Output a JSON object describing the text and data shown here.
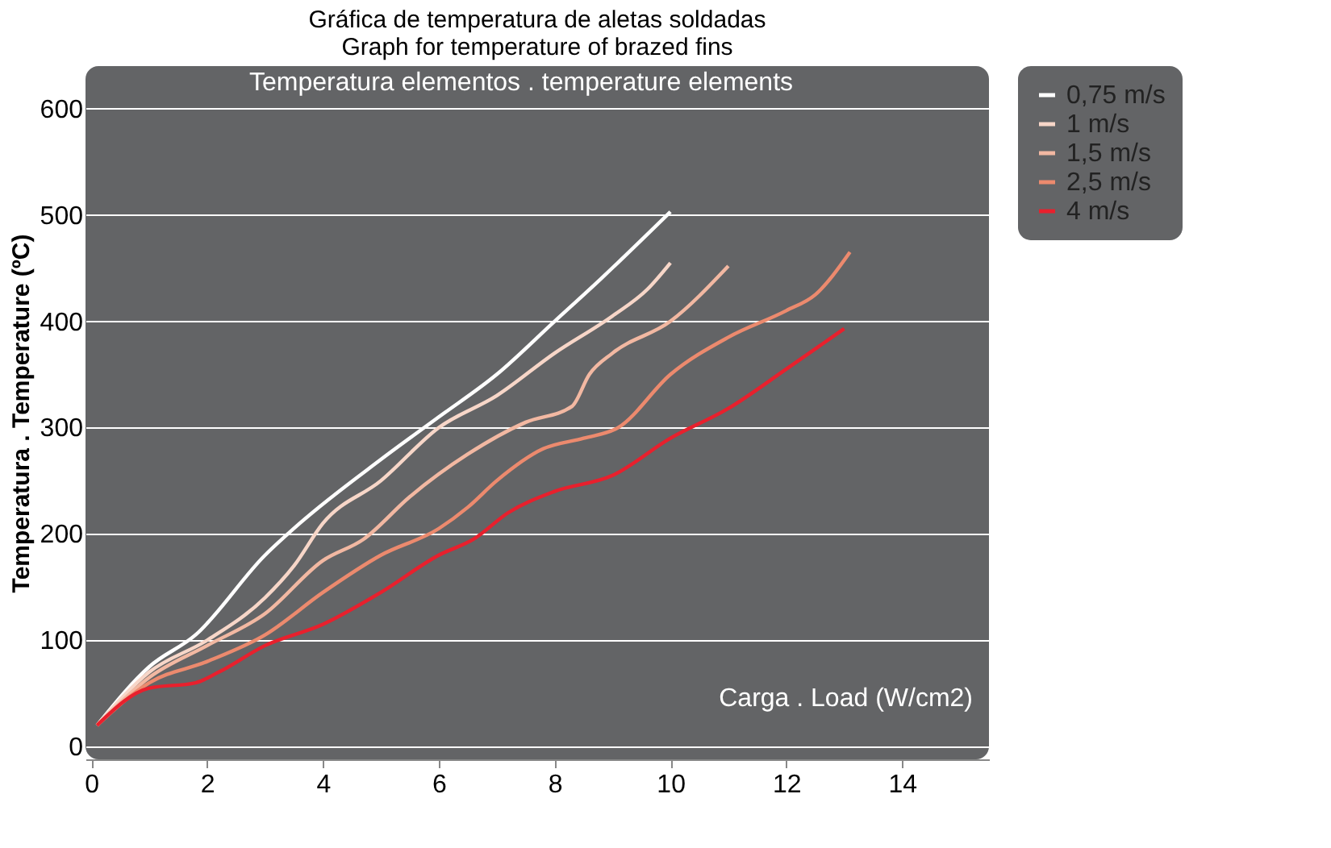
{
  "chart_data": {
    "type": "line",
    "title": [
      "Gráfica de temperatura de aletas soldadas",
      "Graph for temperature of brazed fins"
    ],
    "subtitle": "Temperatura elementos . temperature elements",
    "xlabel": "Carga . Load  (W/cm2)",
    "ylabel": "Temperatura . Temperature (ºC)",
    "xlim": [
      -0.1,
      15.5
    ],
    "xticks": [
      0,
      2,
      4,
      6,
      8,
      10,
      12,
      14
    ],
    "ylim": [
      -12,
      640
    ],
    "yticks": [
      0,
      100,
      200,
      300,
      400,
      500,
      600
    ],
    "grid": "y",
    "legend": "right",
    "line_style": "solid",
    "marker": "none",
    "series": [
      {
        "name": "0,75 m/s",
        "color": "#ffffff",
        "x": [
          0.1,
          1,
          1.8,
          3,
          3.6,
          5,
          6,
          7,
          8,
          8.8,
          10
        ],
        "values": [
          20,
          75,
          105,
          180,
          210,
          270,
          310,
          350,
          400,
          440,
          503
        ]
      },
      {
        "name": "1 m/s",
        "color": "#f7d6c8",
        "x": [
          0.1,
          1,
          2,
          3,
          3.5,
          4,
          5,
          6,
          7,
          8,
          9,
          9.6,
          10
        ],
        "values": [
          20,
          70,
          100,
          140,
          170,
          210,
          250,
          300,
          330,
          370,
          405,
          430,
          455
        ]
      },
      {
        "name": "1,5 m/s",
        "color": "#f2b8a2",
        "x": [
          0.1,
          1,
          2,
          3,
          4,
          4.7,
          5.5,
          6.5,
          7.5,
          8.3,
          8.6,
          9,
          10,
          11
        ],
        "values": [
          20,
          65,
          95,
          125,
          175,
          195,
          235,
          275,
          305,
          320,
          350,
          370,
          400,
          452
        ]
      },
      {
        "name": "2,5 m/s",
        "color": "#ec8a6e",
        "x": [
          0.1,
          1,
          2,
          3,
          4,
          5,
          6,
          6.5,
          7,
          7.8,
          8.5,
          9.1,
          10,
          11,
          12,
          12.5,
          13.1
        ],
        "values": [
          20,
          60,
          80,
          105,
          145,
          180,
          205,
          225,
          250,
          280,
          290,
          300,
          350,
          385,
          410,
          425,
          465
        ]
      },
      {
        "name": "4 m/s",
        "color": "#e8202d",
        "x": [
          0.1,
          1,
          1.8,
          2.2,
          3,
          4,
          5,
          6,
          6.6,
          7.2,
          8,
          9,
          10,
          11,
          12,
          13
        ],
        "values": [
          20,
          55,
          60,
          70,
          95,
          115,
          145,
          180,
          195,
          220,
          240,
          255,
          290,
          318,
          355,
          393
        ]
      }
    ]
  }
}
